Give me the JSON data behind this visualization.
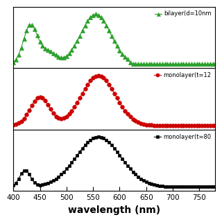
{
  "xlabel": "wavelength (nm)",
  "xlabel_fontsize": 10,
  "xlabel_bold": true,
  "xmin": 400,
  "xmax": 780,
  "xticks": [
    400,
    450,
    500,
    550,
    600,
    650,
    700,
    750
  ],
  "background_color": "#ffffff",
  "panel1": {
    "label": "bilayer(d=10nm",
    "color": "#2ca02c",
    "marker": "^",
    "markersize": 4,
    "linewidth": 0.8
  },
  "panel2": {
    "label": "monolayer(t=12",
    "color": "#cc0000",
    "marker": "o",
    "markersize": 4,
    "linewidth": 0.8
  },
  "panel3": {
    "label": "monolayer(t=80",
    "color": "#000000",
    "marker": "s",
    "markersize": 3.5,
    "linewidth": 0.8
  }
}
